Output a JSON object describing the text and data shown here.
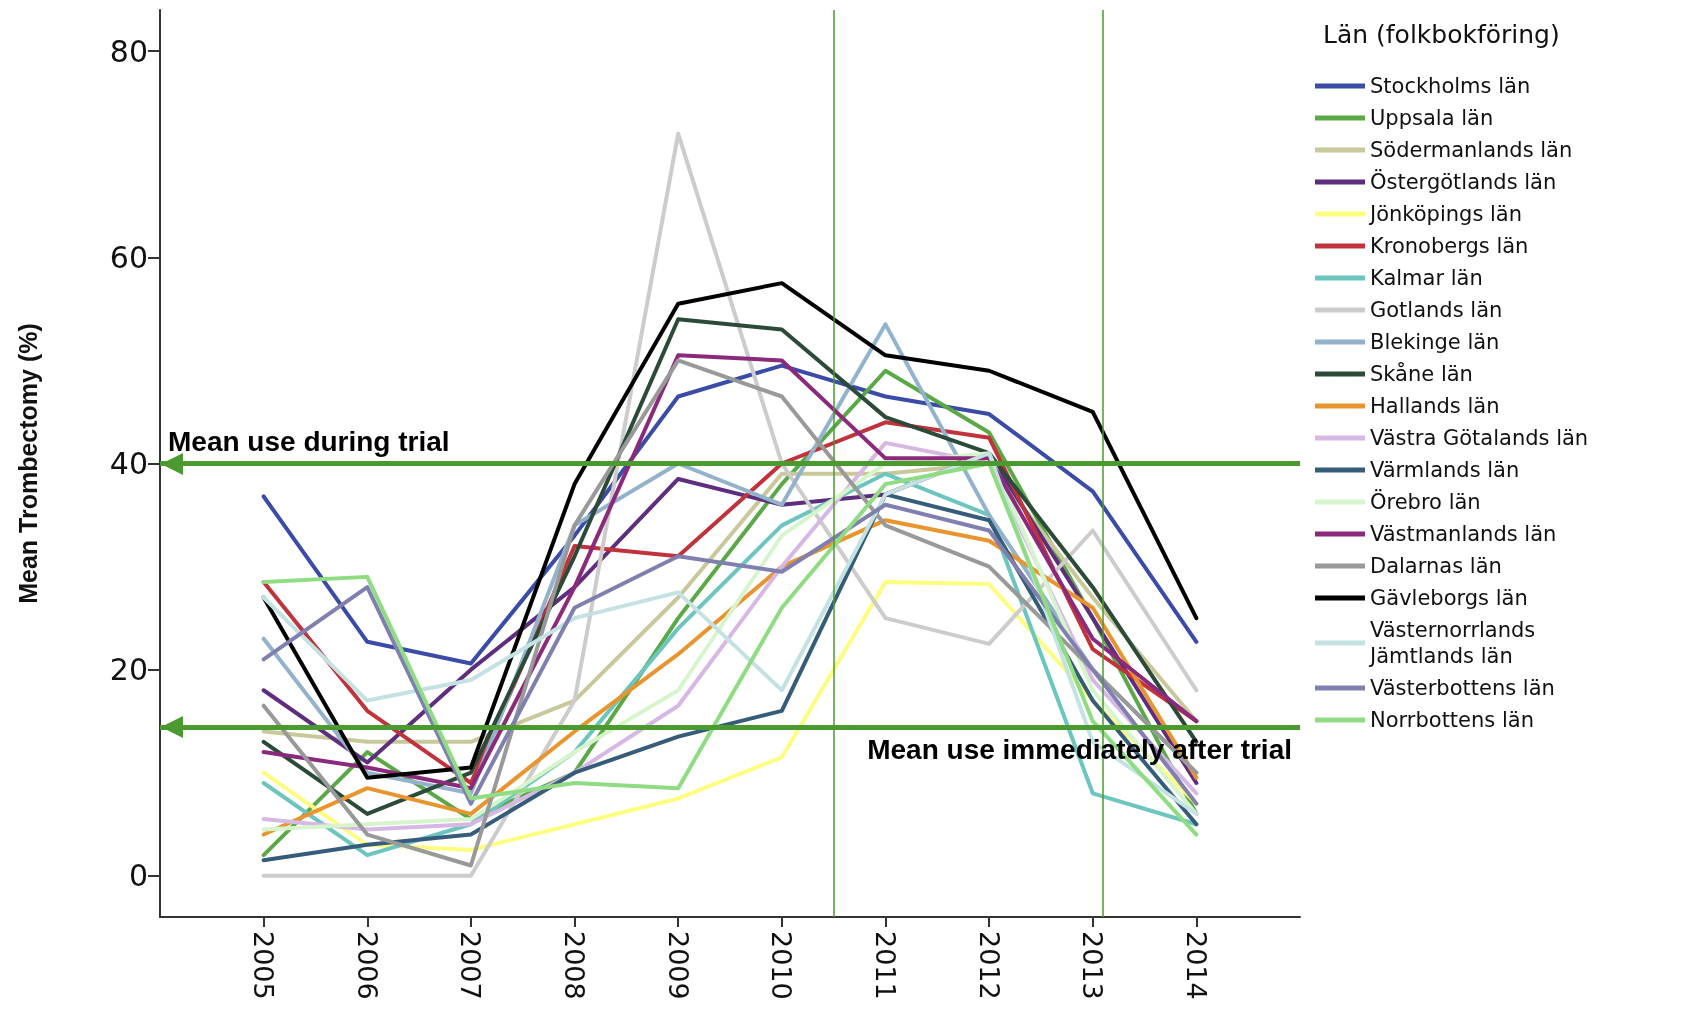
{
  "chart_data": {
    "type": "line",
    "ylabel": "Mean Trombectomy (%)",
    "legend_title": "Län (folkbokföring)",
    "legend": "right",
    "grid": false,
    "marker": "none",
    "line_style": "solid",
    "x": [
      2005,
      2006,
      2007,
      2008,
      2009,
      2010,
      2011,
      2012,
      2013,
      2014
    ],
    "xlim": [
      2004,
      2015
    ],
    "xticks": [
      2005,
      2006,
      2007,
      2008,
      2009,
      2010,
      2011,
      2012,
      2013,
      2014
    ],
    "ylim": [
      -4,
      84
    ],
    "yticks": [
      0,
      20,
      40,
      60,
      80
    ],
    "series": [
      {
        "name": "Stockholms län",
        "color": "#3b4ba8",
        "values": [
          36.8,
          22.7,
          20.6,
          33,
          46.5,
          49.5,
          46.5,
          44.8,
          37.3,
          22.7
        ]
      },
      {
        "name": "Uppsala län",
        "color": "#5aa846",
        "values": [
          2,
          12,
          5.5,
          10,
          25,
          38,
          49,
          43,
          25,
          6
        ]
      },
      {
        "name": "Södermanlands län",
        "color": "#c8c89a",
        "values": [
          14,
          13,
          13,
          17,
          27,
          39,
          39,
          40,
          27,
          15
        ]
      },
      {
        "name": "Östergötlands län",
        "color": "#5e2d7e",
        "values": [
          18,
          11,
          20,
          28,
          38.5,
          36,
          37,
          41,
          25,
          9
        ]
      },
      {
        "name": "Jönköpings län",
        "color": "#fdfd80",
        "values": [
          10,
          3,
          2.5,
          5,
          7.5,
          11.5,
          28.5,
          28.3,
          17,
          7
        ]
      },
      {
        "name": "Kronobergs län",
        "color": "#c0333c",
        "values": [
          28.5,
          16,
          9,
          32,
          31,
          40,
          44,
          42.5,
          22,
          15
        ]
      },
      {
        "name": "Kalmar län",
        "color": "#6dc5c0",
        "values": [
          9,
          2,
          5,
          12,
          24,
          34,
          39,
          35,
          8,
          5
        ]
      },
      {
        "name": "Gotlands län",
        "color": "#cccccc",
        "values": [
          0,
          0,
          0,
          17,
          72,
          40,
          25,
          22.5,
          33.5,
          18
        ]
      },
      {
        "name": "Blekinge län",
        "color": "#93b2cb",
        "values": [
          23,
          10,
          8,
          34,
          40,
          36,
          53.5,
          35,
          20,
          10
        ]
      },
      {
        "name": "Skåne län",
        "color": "#2c4a38",
        "values": [
          13,
          6,
          10,
          31,
          54,
          53,
          44.5,
          41,
          28,
          13
        ]
      },
      {
        "name": "Hallands län",
        "color": "#e8952f",
        "values": [
          4,
          8.5,
          6,
          14,
          21.5,
          30,
          34.5,
          32.5,
          26,
          9.5
        ]
      },
      {
        "name": "Västra Götalands län",
        "color": "#d7b8e5",
        "values": [
          5.5,
          4.5,
          5,
          10,
          16.5,
          30,
          42,
          40,
          19,
          8
        ]
      },
      {
        "name": "Värmlands län",
        "color": "#355c78",
        "values": [
          1.5,
          3,
          4,
          10,
          13.5,
          16,
          37,
          34.5,
          17,
          5
        ]
      },
      {
        "name": "Örebro län",
        "color": "#d6f5cc",
        "values": [
          4.5,
          5,
          5.5,
          12,
          18,
          33,
          40,
          41,
          18,
          6
        ]
      },
      {
        "name": "Västmanlands län",
        "color": "#8b2a7b",
        "values": [
          12,
          10.5,
          8.5,
          28,
          50.5,
          50,
          40.5,
          40.5,
          23,
          15
        ]
      },
      {
        "name": "Dalarnas län",
        "color": "#999999",
        "values": [
          16.5,
          4,
          1,
          34,
          50,
          46.5,
          34,
          30,
          20,
          10
        ]
      },
      {
        "name": "Gävleborgs län",
        "color": "#000000",
        "values": [
          27,
          9.5,
          10.5,
          38,
          55.5,
          57.5,
          50.5,
          49,
          45,
          25
        ]
      },
      {
        "name": "Västernorrlands Jämtlands län",
        "color": "#c4e2e2",
        "values": [
          27,
          17,
          19,
          25,
          27.5,
          18,
          37,
          41,
          13,
          6
        ]
      },
      {
        "name": "Västerbottens län",
        "color": "#7f7fb0",
        "values": [
          21,
          28,
          7,
          26,
          31,
          29.5,
          36,
          33.5,
          20,
          7
        ]
      },
      {
        "name": "Norrbottens län",
        "color": "#8fdc82",
        "values": [
          28.5,
          29,
          7.5,
          9,
          8.5,
          26,
          38,
          40,
          15,
          4
        ]
      }
    ],
    "ref_lines": [
      {
        "axis": "y",
        "value": 40,
        "label": "Mean use during trial",
        "color": "#4a9a2f"
      },
      {
        "axis": "y",
        "value": 14.4,
        "label": "Mean use immediately after trial",
        "color": "#4a9a2f"
      },
      {
        "axis": "x",
        "value": 2010.5,
        "color": "#4a9a2f"
      },
      {
        "axis": "x",
        "value": 2013.1,
        "color": "#4a9a2f"
      }
    ]
  }
}
